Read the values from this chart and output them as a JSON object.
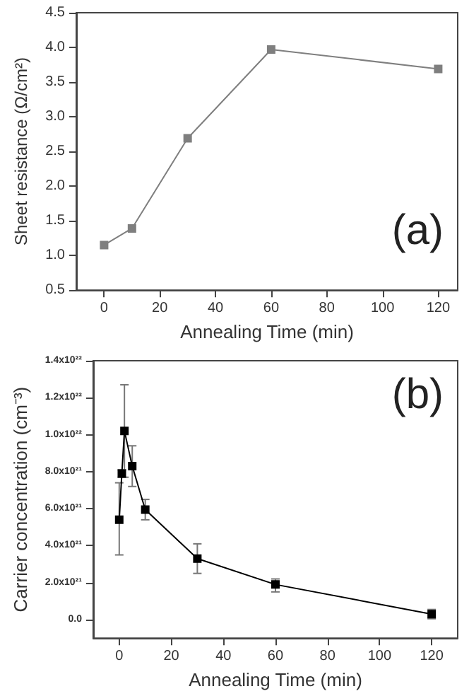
{
  "chart_data": [
    {
      "type": "line",
      "xlabel": "Annealing Time (min)",
      "ylabel": "Sheet resistance (Ω/cm²)",
      "annotations": [
        "(a)"
      ],
      "x": [
        0,
        10,
        30,
        60,
        120
      ],
      "series": [
        {
          "color": "#7f7f7f",
          "values": [
            1.15,
            1.39,
            2.69,
            3.97,
            3.69
          ]
        }
      ],
      "xlim": [
        -10,
        127
      ],
      "xticks": [
        0,
        20,
        40,
        60,
        80,
        100,
        120
      ],
      "ylim": [
        0.5,
        4.5
      ],
      "yticks": [
        0.5,
        {
          "value": 1,
          "label": "1.0"
        },
        1.5,
        {
          "value": 2,
          "label": "2.0"
        },
        2.5,
        {
          "value": 3,
          "label": "3.0"
        },
        3.5,
        {
          "value": 4,
          "label": "4.0"
        },
        4.5
      ],
      "marker": "square"
    },
    {
      "type": "line",
      "xlabel": "Annealing Time (min)",
      "ylabel": "Carrier concentration (cm⁻³)",
      "annotations": [
        "(b)"
      ],
      "x": [
        0,
        1,
        2,
        5,
        10,
        30,
        60,
        120
      ],
      "series": [
        {
          "color": "#000000",
          "values": [
            5.4e+21,
            7.9e+21,
            1.02e+22,
            8.3e+21,
            5.95e+21,
            3.3e+21,
            1.9e+21,
            3e+20
          ],
          "errors": [
            [
              3.5e+21,
              7.4e+21
            ],
            [
              7.7e+21,
              8.1e+21
            ],
            [
              7.7e+21,
              1.27e+22
            ],
            [
              7.2e+21,
              9.4e+21
            ],
            [
              5.4e+21,
              6.5e+21
            ],
            [
              2.5e+21,
              4.1e+21
            ],
            [
              1.5e+21,
              2.2e+21
            ],
            [
              5e+19,
              5.5e+20
            ]
          ]
        }
      ],
      "xlim": [
        -10,
        130
      ],
      "xticks": [
        0,
        20,
        40,
        60,
        80,
        100,
        120
      ],
      "ylim": [
        -1e+21,
        1.4e+22
      ],
      "yticks": [
        {
          "value": 0,
          "label": "0.0"
        },
        {
          "value": 2e+21,
          "label": "2.0x10²¹"
        },
        {
          "value": 4e+21,
          "label": "4.0x10²¹"
        },
        {
          "value": 6e+21,
          "label": "6.0x10²¹"
        },
        {
          "value": 8e+21,
          "label": "8.0x10²¹"
        },
        {
          "value": 1e+22,
          "label": "1.0x10²²"
        },
        {
          "value": 1.2e+22,
          "label": "1.2x10²²"
        },
        {
          "value": 1.4e+22,
          "label": "1.4x10²²"
        }
      ],
      "marker": "square"
    }
  ]
}
